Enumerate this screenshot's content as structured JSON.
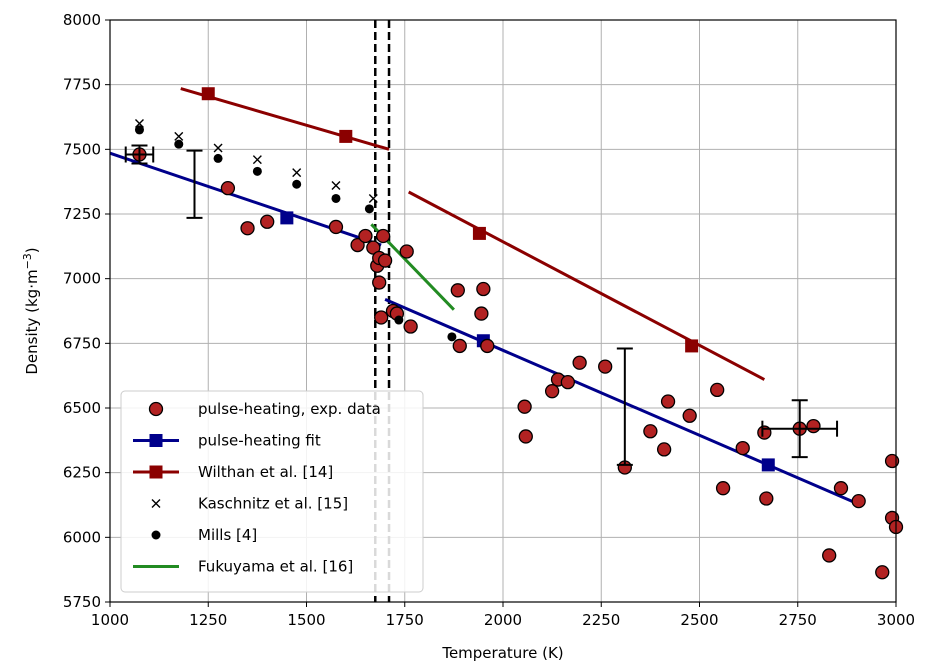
{
  "chart_data": {
    "type": "scatter",
    "xlabel": "Temperature (K)",
    "ylabel": "Density (kg·m",
    "ylabel_sup": "−3",
    "ylabel_close": ")",
    "xlim": [
      1000,
      3000
    ],
    "ylim": [
      5750,
      8000
    ],
    "xticks": [
      1000,
      1250,
      1500,
      1750,
      2000,
      2250,
      2500,
      2750,
      3000
    ],
    "yticks": [
      5750,
      6000,
      6250,
      6500,
      6750,
      7000,
      7250,
      7500,
      7750,
      8000
    ],
    "grid": true,
    "legend_position": "lower-left",
    "vlines": [
      1675,
      1710
    ],
    "series": [
      {
        "name": "pulse-heating, exp. data",
        "kind": "scatter",
        "marker": "circle",
        "color": "#b22222",
        "edge": "#000000",
        "points": [
          [
            1075,
            7480
          ],
          [
            1300,
            7350
          ],
          [
            1350,
            7195
          ],
          [
            1400,
            7220
          ],
          [
            1575,
            7200
          ],
          [
            1630,
            7130
          ],
          [
            1650,
            7165
          ],
          [
            1670,
            7120
          ],
          [
            1680,
            7050
          ],
          [
            1685,
            7080
          ],
          [
            1685,
            6985
          ],
          [
            1690,
            6850
          ],
          [
            1695,
            7165
          ],
          [
            1700,
            7070
          ],
          [
            1720,
            6875
          ],
          [
            1730,
            6865
          ],
          [
            1755,
            7105
          ],
          [
            1765,
            6815
          ],
          [
            1885,
            6955
          ],
          [
            1890,
            6740
          ],
          [
            1945,
            6865
          ],
          [
            1950,
            6960
          ],
          [
            1960,
            6740
          ],
          [
            2055,
            6505
          ],
          [
            2058,
            6390
          ],
          [
            2125,
            6565
          ],
          [
            2140,
            6610
          ],
          [
            2165,
            6600
          ],
          [
            2195,
            6675
          ],
          [
            2260,
            6660
          ],
          [
            2310,
            6270
          ],
          [
            2375,
            6410
          ],
          [
            2410,
            6340
          ],
          [
            2420,
            6525
          ],
          [
            2475,
            6470
          ],
          [
            2545,
            6570
          ],
          [
            2560,
            6190
          ],
          [
            2610,
            6345
          ],
          [
            2665,
            6405
          ],
          [
            2670,
            6150
          ],
          [
            2755,
            6420
          ],
          [
            2790,
            6430
          ],
          [
            2830,
            5930
          ],
          [
            2860,
            6190
          ],
          [
            2905,
            6140
          ],
          [
            2965,
            5865
          ],
          [
            2990,
            6295
          ],
          [
            2990,
            6075
          ],
          [
            3000,
            6040
          ]
        ]
      },
      {
        "name": "pulse-heating fit",
        "kind": "line",
        "color": "#00008b",
        "width": 3,
        "segments": [
          [
            [
              1000,
              7485
            ],
            [
              1690,
              7130
            ]
          ],
          [
            [
              1700,
              6920
            ],
            [
              2910,
              6125
            ]
          ]
        ],
        "markers": [
          [
            1450,
            7235
          ],
          [
            1950,
            6760
          ],
          [
            2675,
            6280
          ]
        ],
        "marker": "square"
      },
      {
        "name": "Wilthan et al. [14]",
        "kind": "line",
        "color": "#8b0000",
        "width": 3,
        "segments": [
          [
            [
              1180,
              7735
            ],
            [
              1710,
              7500
            ]
          ],
          [
            [
              1760,
              7335
            ],
            [
              2665,
              6610
            ]
          ]
        ],
        "markers": [
          [
            1250,
            7715
          ],
          [
            1600,
            7550
          ],
          [
            1940,
            7175
          ],
          [
            2480,
            6740
          ]
        ],
        "marker": "square"
      },
      {
        "name": "Kaschnitz et al. [15]",
        "kind": "scatter",
        "marker": "x",
        "color": "#000000",
        "points": [
          [
            1075,
            7600
          ],
          [
            1175,
            7550
          ],
          [
            1275,
            7505
          ],
          [
            1375,
            7460
          ],
          [
            1475,
            7410
          ],
          [
            1575,
            7360
          ],
          [
            1670,
            7310
          ]
        ]
      },
      {
        "name": "Mills [4]",
        "kind": "scatter",
        "marker": "dot",
        "color": "#000000",
        "points": [
          [
            1075,
            7575
          ],
          [
            1175,
            7520
          ],
          [
            1275,
            7465
          ],
          [
            1375,
            7415
          ],
          [
            1475,
            7365
          ],
          [
            1575,
            7310
          ],
          [
            1660,
            7270
          ],
          [
            1735,
            6840
          ],
          [
            1870,
            6775
          ]
        ]
      },
      {
        "name": "Fukuyama et al. [16]",
        "kind": "line",
        "color": "#228b22",
        "width": 3,
        "segments": [
          [
            [
              1665,
              7210
            ],
            [
              1875,
              6880
            ]
          ]
        ]
      }
    ],
    "error_bars": [
      {
        "x": 1075,
        "y": 7480,
        "yerr": 35,
        "xerr": 35
      },
      {
        "x": 1215,
        "y": 7365,
        "yerr": 130,
        "xerr": 0
      },
      {
        "x": 2310,
        "y": 6505,
        "yerr": 225,
        "xerr": 0
      },
      {
        "x": 2755,
        "y": 6420,
        "yerr": 110,
        "xerr": 95
      }
    ]
  }
}
